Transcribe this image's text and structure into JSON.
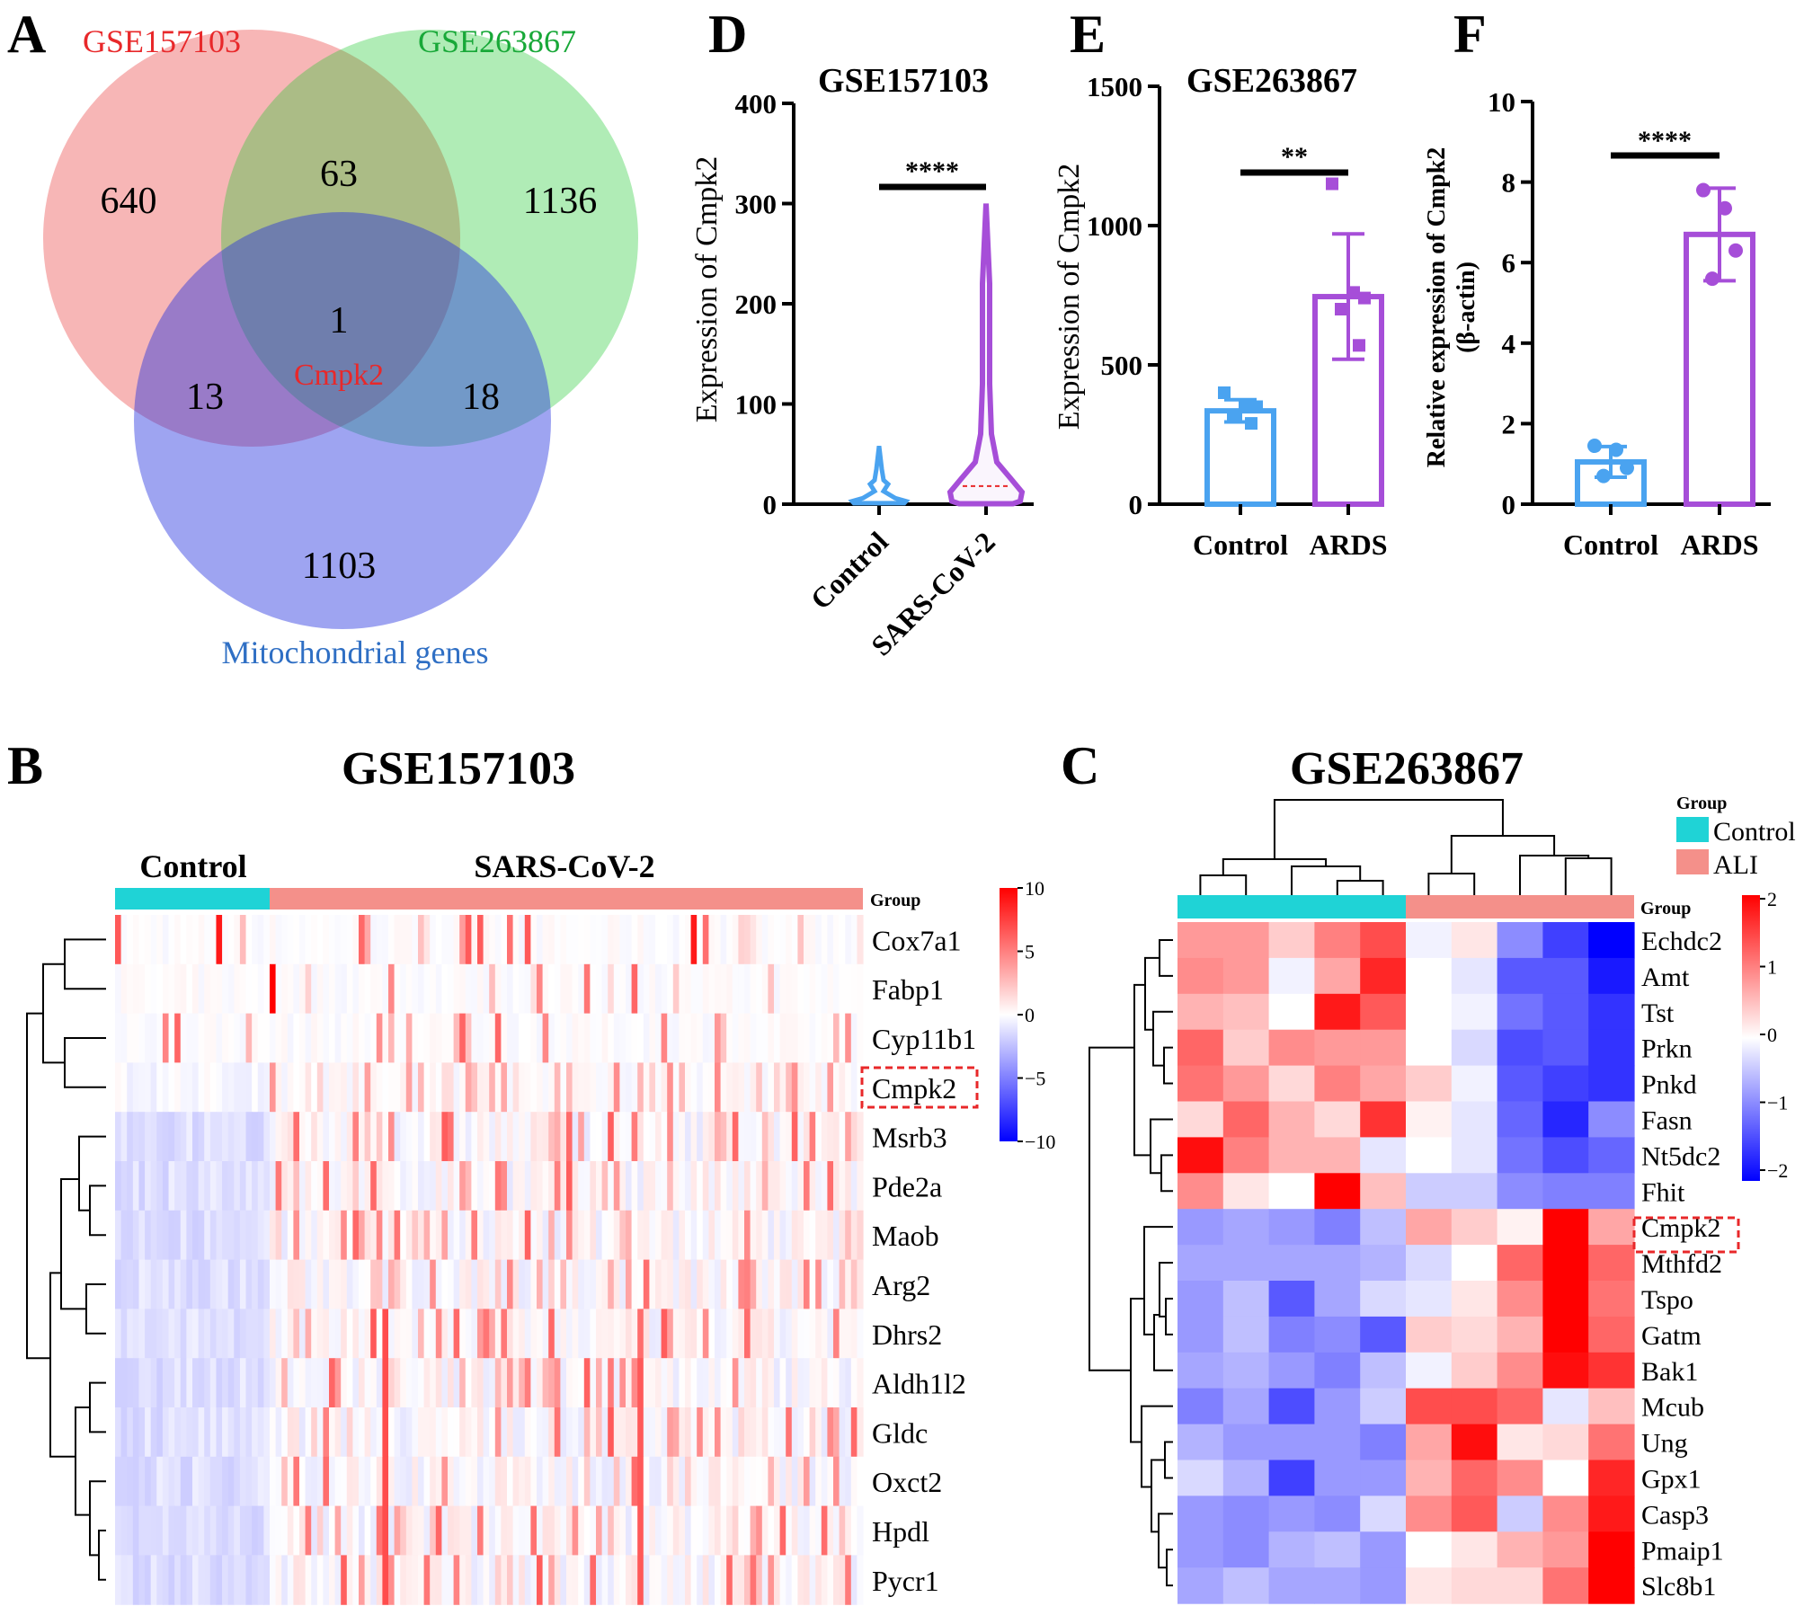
{
  "colors": {
    "gse157103": "#e8282a",
    "gse263867": "#18a838",
    "mito": "#2f6fc4",
    "control": "#4aa3f0",
    "disease": "#a64ed8",
    "group_control": "#1fd3d6",
    "group_case": "#f4908a",
    "heat_high": "#ff0000",
    "heat_low": "#0000ff"
  },
  "panels": {
    "A": {
      "label": "A",
      "set1": "GSE157103",
      "set2": "GSE263867",
      "set3": "Mitochondrial genes",
      "gene": "Cmpk2"
    },
    "B": {
      "label": "B",
      "title": "GSE157103",
      "control_label": "Control",
      "case_label": "SARS-CoV-2",
      "group_label": "Group"
    },
    "C": {
      "label": "C",
      "title": "GSE263867",
      "legend_title": "Group",
      "legend_control": "Control",
      "legend_case": "ALI",
      "group_label": "Group"
    },
    "D": {
      "label": "D",
      "title": "GSE157103",
      "ylabel": "Expression of Cmpk2",
      "signif": "****"
    },
    "E": {
      "label": "E",
      "title": "GSE263867",
      "ylabel": "Expression of Cmpk2",
      "signif": "**"
    },
    "F": {
      "label": "F",
      "ylabel_line1": "Relative expression of Cmpk2",
      "ylabel_line2": "(β-actin)",
      "signif": "****"
    }
  },
  "chart_data": [
    {
      "id": "A",
      "type": "venn",
      "sets": [
        "GSE157103",
        "GSE263867",
        "Mitochondrial genes"
      ],
      "regions": [
        {
          "sets": [
            "GSE157103"
          ],
          "value": 640
        },
        {
          "sets": [
            "GSE263867"
          ],
          "value": 1136
        },
        {
          "sets": [
            "Mitochondrial genes"
          ],
          "value": 1103
        },
        {
          "sets": [
            "GSE157103",
            "GSE263867"
          ],
          "value": 63
        },
        {
          "sets": [
            "GSE157103",
            "Mitochondrial genes"
          ],
          "value": 13
        },
        {
          "sets": [
            "GSE263867",
            "Mitochondrial genes"
          ],
          "value": 18
        },
        {
          "sets": [
            "GSE157103",
            "GSE263867",
            "Mitochondrial genes"
          ],
          "value": 1,
          "label": "Cmpk2"
        }
      ]
    },
    {
      "id": "B",
      "type": "heatmap",
      "title": "GSE157103",
      "groups": [
        {
          "name": "Control",
          "n": 26
        },
        {
          "name": "SARS-CoV-2",
          "n": 100
        }
      ],
      "genes": [
        "Cox7a1",
        "Fabp1",
        "Cyp11b1",
        "Cmpk2",
        "Msrb3",
        "Pde2a",
        "Maob",
        "Arg2",
        "Dhrs2",
        "Aldh1l2",
        "Gldc",
        "Oxct2",
        "Hpdl",
        "Pycr1"
      ],
      "highlight": "Cmpk2",
      "scale": {
        "min": -10,
        "max": 10,
        "ticks": [
          10,
          5,
          0,
          -5,
          -10
        ]
      },
      "group_row_label": "Group"
    },
    {
      "id": "C",
      "type": "heatmap",
      "title": "GSE263867",
      "groups": [
        {
          "name": "Control",
          "n": 5
        },
        {
          "name": "ALI",
          "n": 5
        }
      ],
      "genes": [
        "Echdc2",
        "Amt",
        "Tst",
        "Prkn",
        "Pnkd",
        "Fasn",
        "Nt5dc2",
        "Fhit",
        "Cmpk2",
        "Mthfd2",
        "Tspo",
        "Gatm",
        "Bak1",
        "Mcub",
        "Ung",
        "Gpx1",
        "Casp3",
        "Pmaip1",
        "Slc8b1"
      ],
      "highlight": "Cmpk2",
      "scale": {
        "min": -2,
        "max": 2,
        "ticks": [
          2,
          1,
          0,
          -1,
          -2
        ]
      },
      "values": [
        [
          0.8,
          0.8,
          0.4,
          1.0,
          1.4,
          -0.1,
          0.2,
          -0.9,
          -1.5,
          -2.0
        ],
        [
          0.9,
          0.8,
          -0.1,
          0.7,
          1.7,
          0.0,
          -0.2,
          -1.3,
          -1.3,
          -1.8
        ],
        [
          0.6,
          0.5,
          0.0,
          1.8,
          1.3,
          0.0,
          -0.1,
          -1.1,
          -1.3,
          -1.6
        ],
        [
          1.2,
          0.4,
          0.9,
          0.8,
          0.8,
          0.0,
          -0.3,
          -1.4,
          -1.3,
          -1.6
        ],
        [
          1.1,
          0.8,
          0.3,
          1.0,
          0.7,
          0.4,
          -0.1,
          -1.3,
          -1.5,
          -1.6
        ],
        [
          0.3,
          1.2,
          0.6,
          0.3,
          1.6,
          0.1,
          -0.2,
          -1.2,
          -1.7,
          -0.9
        ],
        [
          1.9,
          1.0,
          0.6,
          0.6,
          -0.2,
          0.0,
          -0.2,
          -1.1,
          -1.4,
          -1.2
        ],
        [
          0.9,
          0.2,
          0.0,
          2.2,
          0.5,
          -0.4,
          -0.4,
          -0.9,
          -1.0,
          -1.0
        ],
        [
          -0.8,
          -0.7,
          -0.8,
          -1.0,
          -0.5,
          0.7,
          0.4,
          0.1,
          2.2,
          0.7
        ],
        [
          -0.7,
          -0.7,
          -0.7,
          -0.7,
          -0.6,
          -0.3,
          0.0,
          1.2,
          2.0,
          1.2
        ],
        [
          -0.8,
          -0.5,
          -1.3,
          -0.7,
          -0.3,
          -0.2,
          0.2,
          0.9,
          2.0,
          1.1
        ],
        [
          -0.8,
          -0.5,
          -1.0,
          -0.9,
          -1.3,
          0.4,
          0.3,
          0.6,
          2.0,
          1.2
        ],
        [
          -0.7,
          -0.6,
          -0.8,
          -1.0,
          -0.5,
          -0.1,
          0.4,
          0.9,
          1.9,
          1.6
        ],
        [
          -1.0,
          -0.7,
          -1.4,
          -0.8,
          -0.4,
          1.4,
          1.4,
          1.2,
          -0.2,
          0.5
        ],
        [
          -0.6,
          -0.8,
          -0.8,
          -0.8,
          -1.0,
          0.7,
          1.9,
          0.2,
          0.3,
          1.1
        ],
        [
          -0.3,
          -0.6,
          -1.5,
          -0.8,
          -0.8,
          0.6,
          1.2,
          0.9,
          0.0,
          1.7
        ],
        [
          -0.8,
          -0.9,
          -0.8,
          -0.9,
          -0.3,
          0.9,
          1.3,
          -0.4,
          0.9,
          1.8
        ],
        [
          -0.8,
          -0.9,
          -0.6,
          -0.5,
          -0.8,
          0.0,
          0.2,
          0.6,
          0.8,
          2.1
        ],
        [
          -0.7,
          -0.5,
          -0.7,
          -0.7,
          -0.8,
          0.2,
          0.3,
          0.3,
          1.1,
          2.1
        ]
      ]
    },
    {
      "id": "D",
      "type": "violin",
      "title": "GSE157103",
      "ylabel": "Expression of Cmpk2",
      "ylim": [
        0,
        400
      ],
      "yticks": [
        0,
        100,
        200,
        300,
        400
      ],
      "categories": [
        "Control",
        "SARS-CoV-2"
      ],
      "max_values": [
        58,
        300
      ],
      "medians": [
        3,
        18
      ],
      "significance": "****"
    },
    {
      "id": "E",
      "type": "bar",
      "title": "GSE263867",
      "ylabel": "Expression of Cmpk2",
      "ylim": [
        0,
        1500
      ],
      "yticks": [
        0,
        500,
        1000,
        1500
      ],
      "categories": [
        "Control",
        "ARDS"
      ],
      "values": [
        335,
        745
      ],
      "errors": [
        40,
        225
      ],
      "points": [
        [
          400,
          355,
          350,
          320,
          290
        ],
        [
          1150,
          760,
          740,
          700,
          570
        ]
      ],
      "significance": "**"
    },
    {
      "id": "F",
      "type": "bar",
      "ylabel": "Relative expression of Cmpk2 (β-actin)",
      "ylim": [
        0,
        10
      ],
      "yticks": [
        0,
        2,
        4,
        6,
        8,
        10
      ],
      "categories": [
        "Control",
        "ARDS"
      ],
      "values": [
        1.05,
        6.7
      ],
      "errors": [
        0.38,
        1.15
      ],
      "points": [
        [
          1.45,
          1.35,
          0.9,
          0.7
        ],
        [
          7.8,
          7.35,
          6.3,
          5.6
        ]
      ],
      "significance": "****"
    }
  ]
}
